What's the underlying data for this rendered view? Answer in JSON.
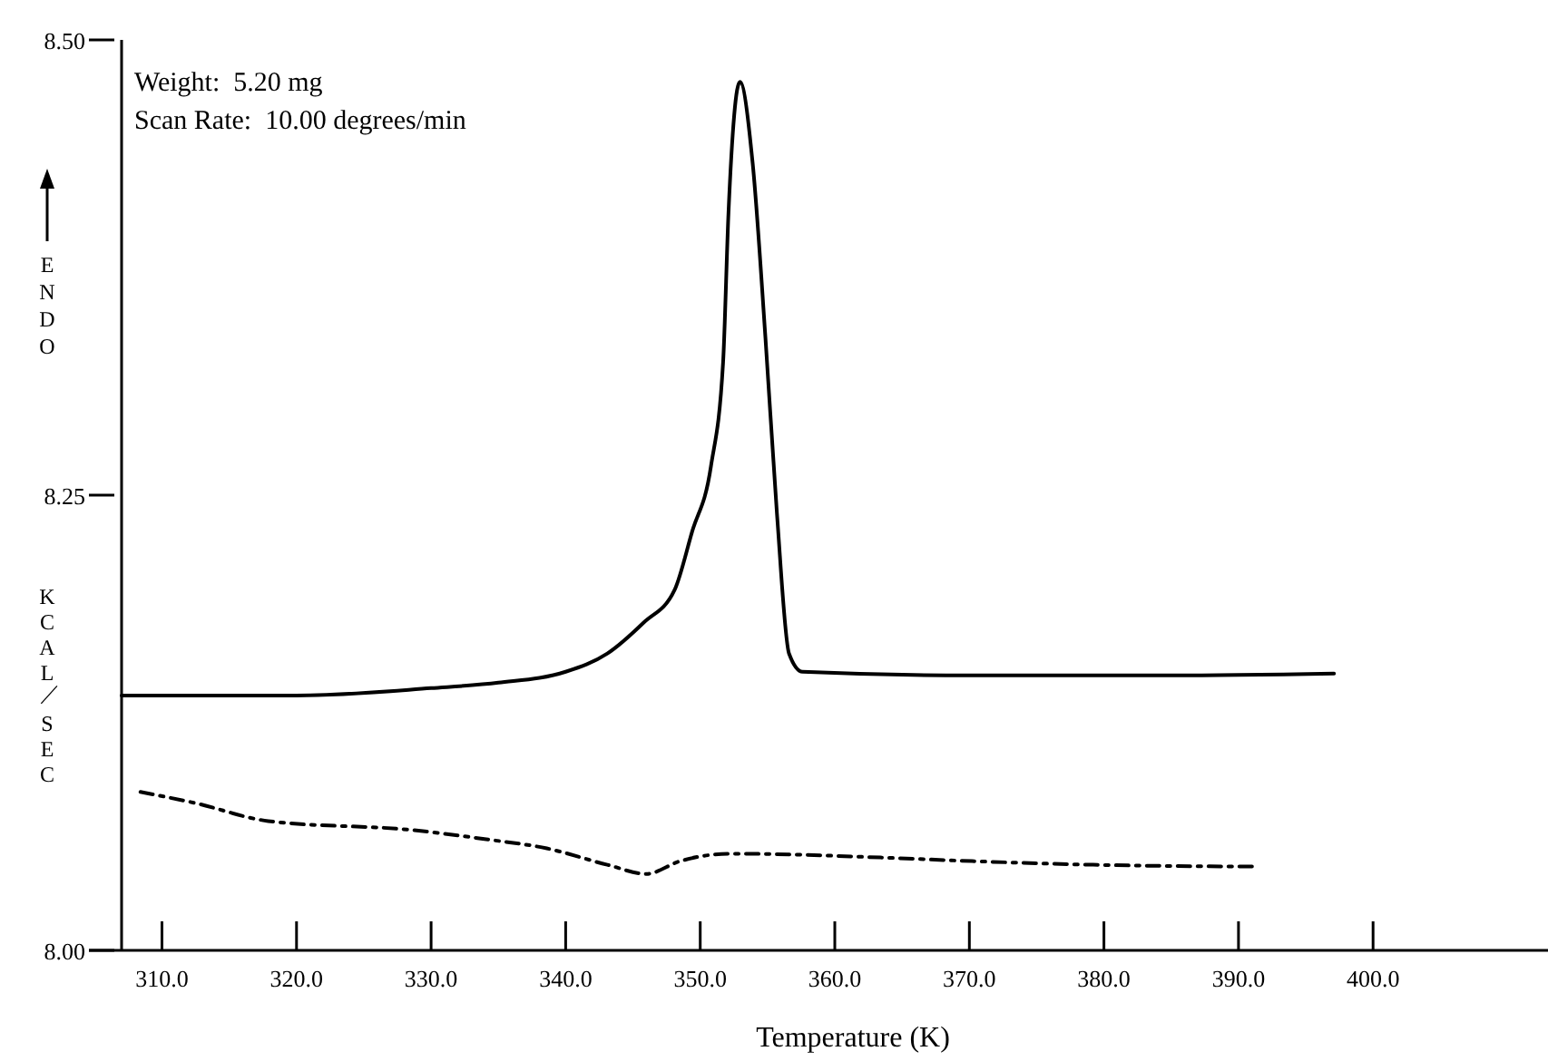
{
  "chart_data": {
    "type": "line",
    "xlabel": "Temperature (K)",
    "ylabel": "KCAL/SEC",
    "annotations": [
      "Weight:  5.20 mg",
      "Scan Rate:  10.00 degrees/min",
      "ENDO"
    ],
    "xlim": [
      307,
      413
    ],
    "ylim": [
      8.0,
      8.5
    ],
    "xticks": [
      {
        "value": 310,
        "label": "310.0"
      },
      {
        "value": 320,
        "label": "320.0"
      },
      {
        "value": 330,
        "label": "330.0"
      },
      {
        "value": 340,
        "label": "340.0"
      },
      {
        "value": 350,
        "label": "350.0"
      },
      {
        "value": 360,
        "label": "360.0"
      },
      {
        "value": 370,
        "label": "370.0"
      },
      {
        "value": 380,
        "label": "380.0"
      },
      {
        "value": 390,
        "label": "390.0"
      },
      {
        "value": 400,
        "label": "400.0"
      }
    ],
    "yticks": [
      {
        "value": 8.0,
        "label": "8.00"
      },
      {
        "value": 8.25,
        "label": "8.25"
      },
      {
        "value": 8.5,
        "label": "8.50"
      }
    ],
    "grid": false,
    "marker": "none",
    "series": [
      {
        "color": "#000000",
        "line_style": "solid",
        "x": [
          307.0,
          320.0,
          330.0,
          335.0,
          340.0,
          343.1,
          345.8,
          348.1,
          349.4,
          350.8,
          351.7,
          352.1,
          352.95,
          353.9,
          354.85,
          355.7,
          356.6,
          357.6,
          370.0,
          385.0,
          397.1
        ],
        "values": [
          8.14,
          8.14,
          8.144,
          8.147,
          8.153,
          8.163,
          8.18,
          8.198,
          8.23,
          8.266,
          8.323,
          8.405,
          8.477,
          8.432,
          8.336,
          8.24,
          8.163,
          8.153,
          8.151,
          8.151,
          8.152
        ]
      },
      {
        "color": "#000000",
        "line_style": "dashed",
        "x": [
          308.4,
          312.4,
          317.9,
          328.7,
          334.1,
          338.6,
          343.1,
          346.0,
          348.5,
          352.1,
          353.5,
          363.4,
          370.2,
          379.2,
          391.4
        ],
        "values": [
          8.087,
          8.081,
          8.071,
          8.066,
          8.061,
          8.056,
          8.047,
          8.042,
          8.049,
          8.053,
          8.053,
          8.051,
          8.049,
          8.047,
          8.046
        ]
      }
    ]
  }
}
